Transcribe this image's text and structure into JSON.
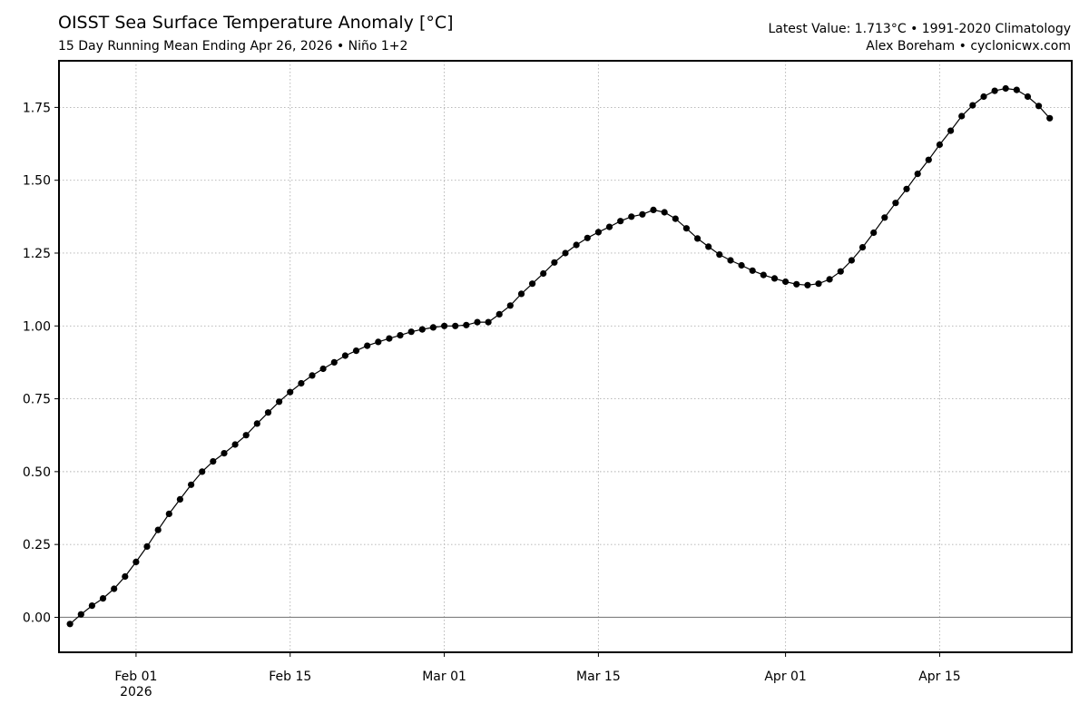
{
  "header": {
    "title": "OISST Sea Surface Temperature Anomaly [°C]",
    "subtitle": "15 Day Running Mean Ending Apr 26, 2026 • Niño 1+2",
    "info_line1": "Latest Value: 1.713°C • 1991-2020 Climatology",
    "info_line2": "Alex Boreham • cyclonicwx.com"
  },
  "chart_data": {
    "type": "line",
    "x_start_date": "2026-01-26",
    "x_end_date": "2026-04-26",
    "xlim_dates": [
      "2026-01-25",
      "2026-04-27"
    ],
    "ylim": [
      -0.12,
      1.91
    ],
    "grid": true,
    "x_ticks": [
      {
        "date": "2026-02-01",
        "label": "Feb 01",
        "sublabel": "2026"
      },
      {
        "date": "2026-02-15",
        "label": "Feb 15",
        "sublabel": ""
      },
      {
        "date": "2026-03-01",
        "label": "Mar 01",
        "sublabel": ""
      },
      {
        "date": "2026-03-15",
        "label": "Mar 15",
        "sublabel": ""
      },
      {
        "date": "2026-04-01",
        "label": "Apr 01",
        "sublabel": ""
      },
      {
        "date": "2026-04-15",
        "label": "Apr 15",
        "sublabel": ""
      }
    ],
    "y_ticks": [
      {
        "value": 0.0,
        "label": "0.00"
      },
      {
        "value": 0.25,
        "label": "0.25"
      },
      {
        "value": 0.5,
        "label": "0.50"
      },
      {
        "value": 0.75,
        "label": "0.75"
      },
      {
        "value": 1.0,
        "label": "1.00"
      },
      {
        "value": 1.25,
        "label": "1.25"
      },
      {
        "value": 1.5,
        "label": "1.50"
      },
      {
        "value": 1.75,
        "label": "1.75"
      }
    ],
    "series": [
      {
        "color": "#000000",
        "values": [
          -0.023,
          0.01,
          0.04,
          0.065,
          0.098,
          0.14,
          0.19,
          0.243,
          0.3,
          0.355,
          0.405,
          0.455,
          0.5,
          0.535,
          0.563,
          0.593,
          0.625,
          0.665,
          0.703,
          0.74,
          0.773,
          0.803,
          0.83,
          0.853,
          0.875,
          0.898,
          0.915,
          0.932,
          0.945,
          0.957,
          0.968,
          0.98,
          0.988,
          0.995,
          1.0,
          1.0,
          1.003,
          1.013,
          1.013,
          1.04,
          1.07,
          1.11,
          1.145,
          1.18,
          1.218,
          1.25,
          1.278,
          1.302,
          1.322,
          1.34,
          1.36,
          1.375,
          1.383,
          1.398,
          1.39,
          1.368,
          1.335,
          1.3,
          1.272,
          1.245,
          1.225,
          1.208,
          1.19,
          1.175,
          1.163,
          1.152,
          1.143,
          1.14,
          1.145,
          1.16,
          1.187,
          1.225,
          1.27,
          1.32,
          1.372,
          1.422,
          1.47,
          1.522,
          1.57,
          1.622,
          1.67,
          1.72,
          1.757,
          1.787,
          1.807,
          1.815,
          1.81,
          1.787,
          1.755,
          1.713
        ]
      }
    ]
  }
}
